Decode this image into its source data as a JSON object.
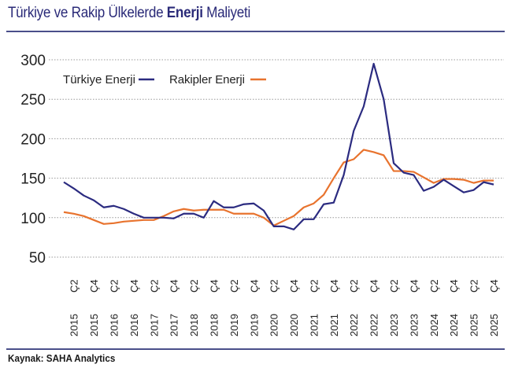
{
  "title": {
    "prefix": "Türkiye ve Rakip Ülkelerde",
    "bold": "Enerji",
    "suffix": "Maliyeti"
  },
  "source": "Kaynak: SAHA Analytics",
  "colors": {
    "turkiye": "#2b2b80",
    "rakipler": "#e8732e",
    "grid": "#999999"
  },
  "chart_data": {
    "type": "line",
    "title": "Türkiye ve Rakip Ülkelerde Enerji Maliyeti",
    "xlabel": "",
    "ylabel": "",
    "ylim": [
      50,
      300
    ],
    "yticks": [
      50,
      100,
      150,
      200,
      250,
      300
    ],
    "grid": true,
    "legend_position": "top-left",
    "x": [
      "Ç1 2015",
      "Ç2 2015",
      "Ç3 2015",
      "Ç4 2015",
      "Ç1 2016",
      "Ç2 2016",
      "Ç3 2016",
      "Ç4 2016",
      "Ç1 2017",
      "Ç2 2017",
      "Ç3 2017",
      "Ç4 2017",
      "Ç1 2018",
      "Ç2 2018",
      "Ç3 2018",
      "Ç4 2018",
      "Ç1 2019",
      "Ç2 2019",
      "Ç3 2019",
      "Ç4 2019",
      "Ç1 2020",
      "Ç2 2020",
      "Ç3 2020",
      "Ç4 2020",
      "Ç1 2021",
      "Ç2 2021",
      "Ç3 2021",
      "Ç4 2021",
      "Ç1 2022",
      "Ç2 2022",
      "Ç3 2022",
      "Ç4 2022",
      "Ç1 2023",
      "Ç2 2023",
      "Ç3 2023",
      "Ç4 2023",
      "Ç1 2024",
      "Ç2 2024",
      "Ç3 2024",
      "Ç4 2024",
      "Ç1 2025",
      "Ç2 2025",
      "Ç3 2025",
      "Ç4 2025"
    ],
    "tick_labels": [
      {
        "q": "Ç2",
        "y": "2015"
      },
      {
        "q": "Ç4",
        "y": "2015"
      },
      {
        "q": "Ç2",
        "y": "2016"
      },
      {
        "q": "Ç4",
        "y": "2016"
      },
      {
        "q": "Ç2",
        "y": "2017"
      },
      {
        "q": "Ç4",
        "y": "2017"
      },
      {
        "q": "Ç2",
        "y": "2018"
      },
      {
        "q": "Ç4",
        "y": "2018"
      },
      {
        "q": "Ç2",
        "y": "2019"
      },
      {
        "q": "Ç4",
        "y": "2019"
      },
      {
        "q": "Ç2",
        "y": "2020"
      },
      {
        "q": "Ç4",
        "y": "2020"
      },
      {
        "q": "Ç2",
        "y": "2021"
      },
      {
        "q": "Ç4",
        "y": "2021"
      },
      {
        "q": "Ç2",
        "y": "2022"
      },
      {
        "q": "Ç4",
        "y": "2022"
      },
      {
        "q": "Ç2",
        "y": "2023"
      },
      {
        "q": "Ç4",
        "y": "2023"
      },
      {
        "q": "Ç2",
        "y": "2024"
      },
      {
        "q": "Ç4",
        "y": "2024"
      },
      {
        "q": "Ç2",
        "y": "2025"
      },
      {
        "q": "Ç4",
        "y": "2025"
      }
    ],
    "series": [
      {
        "name": "Türkiye Enerji",
        "values": [
          145,
          137,
          128,
          122,
          113,
          115,
          111,
          105,
          100,
          100,
          100,
          99,
          105,
          105,
          100,
          121,
          113,
          113,
          117,
          118,
          109,
          89,
          89,
          85,
          98,
          98,
          117,
          119,
          154,
          210,
          241,
          295,
          250,
          169,
          157,
          154,
          134,
          139,
          148,
          140,
          132,
          135,
          145,
          142
        ]
      },
      {
        "name": "Rakipler Enerji",
        "values": [
          107,
          105,
          102,
          97,
          92,
          93,
          95,
          96,
          97,
          97,
          102,
          108,
          111,
          109,
          110,
          110,
          110,
          105,
          105,
          105,
          100,
          90,
          96,
          102,
          113,
          118,
          129,
          150,
          170,
          174,
          186,
          183,
          179,
          159,
          159,
          158,
          151,
          144,
          149,
          149,
          148,
          144,
          147,
          147
        ]
      }
    ]
  }
}
